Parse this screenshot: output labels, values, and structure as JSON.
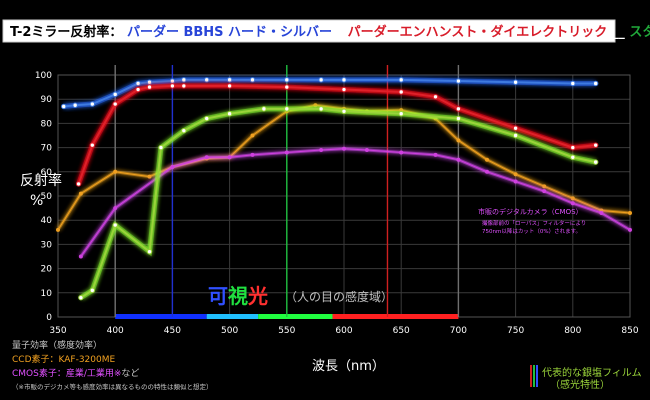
{
  "chart_data": {
    "type": "line",
    "title": {
      "prefix": "T-2ミラー反射率：",
      "series1": "パーダー BBHS ハード・シルバー",
      "series2": "パーダーエンハンスト・ダイエレクトリック",
      "series3": "スタンダードアルミニウム"
    },
    "ylabel": "反射率\n%",
    "xlabel": "波長（nm）",
    "xlim": [
      350,
      850
    ],
    "ylim": [
      0,
      100
    ],
    "xticks": [
      350,
      400,
      450,
      500,
      550,
      600,
      650,
      700,
      750,
      800,
      850
    ],
    "yticks": [
      0,
      10,
      20,
      30,
      40,
      50,
      60,
      70,
      80,
      90,
      100
    ],
    "grid": true,
    "series": [
      {
        "name": "パーダー BBHS ハード・シルバー",
        "color": "#3f7be0",
        "glow": "#2a6cff",
        "x": [
          355,
          365,
          380,
          400,
          420,
          430,
          450,
          460,
          480,
          500,
          520,
          550,
          580,
          600,
          650,
          700,
          750,
          800,
          820
        ],
        "y": [
          87,
          87.5,
          88,
          92,
          96.5,
          97,
          97.5,
          98,
          98,
          98,
          98,
          98,
          98,
          98,
          98,
          97.5,
          97,
          96.5,
          96.5
        ]
      },
      {
        "name": "パーダーエンハンスト・ダイエレクトリック",
        "color": "#e0202a",
        "glow": "#ff1020",
        "x": [
          368,
          380,
          400,
          420,
          430,
          450,
          460,
          500,
          550,
          600,
          650,
          680,
          700,
          750,
          800,
          820
        ],
        "y": [
          55,
          71,
          88,
          94,
          95,
          95.5,
          95.5,
          95.5,
          95,
          94,
          93,
          91,
          86,
          78,
          70,
          71
        ]
      },
      {
        "name": "スタンダードアルミニウム",
        "color": "#9ad43a",
        "glow": "#8fff30",
        "x": [
          370,
          380,
          400,
          430,
          440,
          460,
          480,
          500,
          530,
          550,
          580,
          600,
          650,
          700,
          750,
          800,
          820
        ],
        "y": [
          8,
          11,
          38,
          27,
          70,
          77,
          82,
          84,
          86,
          86,
          86,
          85,
          84,
          82,
          75,
          66,
          64
        ]
      },
      {
        "name": "KAF-3200ME",
        "color": "#f0a020",
        "glow": "#ffb020",
        "x": [
          350,
          370,
          400,
          430,
          450,
          480,
          500,
          520,
          550,
          575,
          600,
          620,
          650,
          680,
          700,
          725,
          750,
          775,
          800,
          825,
          850
        ],
        "y": [
          36,
          51,
          60,
          58,
          62,
          65.5,
          66,
          75,
          85,
          87.5,
          86,
          85,
          85.5,
          82,
          73,
          65,
          59,
          54,
          49,
          44,
          43
        ]
      },
      {
        "name": "CMOS素子",
        "color": "#d040e0",
        "glow": "#e050ff",
        "x": [
          370,
          400,
          450,
          480,
          500,
          520,
          550,
          580,
          600,
          620,
          650,
          680,
          700,
          725,
          750,
          775,
          800,
          825,
          850
        ],
        "y": [
          25,
          45,
          62,
          66,
          66,
          67,
          68,
          69,
          69.5,
          69,
          68,
          67,
          65,
          60,
          56,
          52,
          47,
          43,
          36
        ]
      }
    ],
    "markers": [
      {
        "x": 400,
        "color": "#6f6f6f"
      },
      {
        "x": 450,
        "color": "#2030d0"
      },
      {
        "x": 550,
        "color": "#20c040"
      },
      {
        "x": 638,
        "color": "#d02020"
      },
      {
        "x": 700,
        "color": "#6f6f6f"
      }
    ],
    "visible_band": {
      "segments": [
        {
          "from": 400,
          "to": 480,
          "color": "#1030ff"
        },
        {
          "from": 480,
          "to": 525,
          "color": "#20c0ff"
        },
        {
          "from": 525,
          "to": 590,
          "color": "#20ff40"
        },
        {
          "from": 590,
          "to": 700,
          "color": "#ff2020"
        }
      ],
      "label_chars": [
        {
          "text": "可",
          "color": "#3050ff"
        },
        {
          "text": "視",
          "color": "#20e040"
        },
        {
          "text": "光",
          "color": "#ff3030"
        }
      ],
      "sublabel": "（人の目の感度域）"
    },
    "annotation": {
      "title": "市販のデジタルカメラ（CMOS）",
      "lines": [
        "撮像部前の「ローパス」フィルターにより",
        "750nm以降はカット（0%）されます。"
      ],
      "color": "#e050ff"
    }
  },
  "legend": {
    "header": "量子効率（感度効率）",
    "ccd_label": "CCD素子：KAF-3200ME",
    "cmos_label": "CMOS素子：産業/工業用※",
    "cmos_suffix": "など",
    "footnote": "（※市販のデジカメ等も感度効率は異なるものの特性は類似と想定）",
    "ccd_color": "#f0a020",
    "cmos_color": "#e050ff"
  },
  "film_note": {
    "line1": "代表的な銀塩フィルム",
    "line2": "（感光特性）",
    "color": "#9ad43a"
  }
}
